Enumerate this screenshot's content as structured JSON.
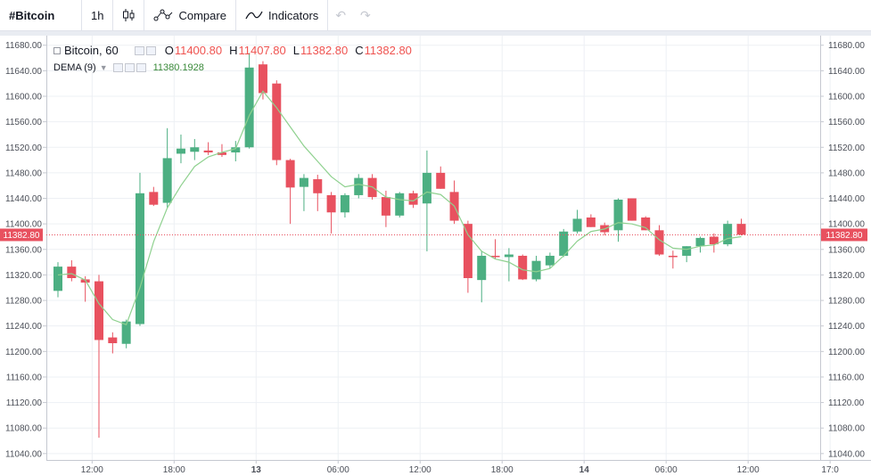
{
  "toolbar": {
    "symbol": "#Bitcoin",
    "interval": "1h",
    "compare_label": "Compare",
    "indicators_label": "Indicators"
  },
  "legend": {
    "title": "Bitcoin, 60",
    "o_label": "O",
    "o_value": "11400.80",
    "h_label": "H",
    "h_value": "11407.80",
    "l_label": "L",
    "l_value": "11382.80",
    "c_label": "C",
    "c_value": "11382.80",
    "indicator_name": "DEMA (9)",
    "indicator_value": "11380.1928"
  },
  "colors": {
    "up": "#4caf82",
    "down": "#e8515f",
    "dema": "#8fd18f",
    "price_line": "#e8515f"
  },
  "chart_data": {
    "type": "candlestick",
    "ylim": [
      11030,
      11695
    ],
    "y_ticks": [
      11040,
      11080,
      11120,
      11160,
      11200,
      11240,
      11280,
      11320,
      11360,
      11400,
      11440,
      11480,
      11520,
      11560,
      11600,
      11640,
      11680
    ],
    "y_tick_labels": [
      "11040.00",
      "11080.00",
      "11120.00",
      "11160.00",
      "11200.00",
      "11240.00",
      "11280.00",
      "11320.00",
      "11360.00",
      "11400.00",
      "11440.00",
      "11480.00",
      "11520.00",
      "11560.00",
      "11600.00",
      "11640.00",
      "11680.00"
    ],
    "x_ticks": [
      {
        "index": 2.5,
        "label": "12:00"
      },
      {
        "index": 8.5,
        "label": "18:00"
      },
      {
        "index": 14.5,
        "label": "13"
      },
      {
        "index": 20.5,
        "label": "06:00"
      },
      {
        "index": 26.5,
        "label": "12:00"
      },
      {
        "index": 32.5,
        "label": "18:00"
      },
      {
        "index": 38.5,
        "label": "14"
      },
      {
        "index": 44.5,
        "label": "06:00"
      },
      {
        "index": 50.5,
        "label": "12:00"
      },
      {
        "index": 56.5,
        "label": "17:0"
      }
    ],
    "last_price": 11382.8,
    "last_price_label": "11382.80",
    "candles": [
      {
        "o": 11295,
        "h": 11340,
        "l": 11285,
        "c": 11333
      },
      {
        "o": 11333,
        "h": 11343,
        "l": 11310,
        "c": 11315
      },
      {
        "o": 11313,
        "h": 11318,
        "l": 11278,
        "c": 11308
      },
      {
        "o": 11310,
        "h": 11320,
        "l": 11065,
        "c": 11218
      },
      {
        "o": 11222,
        "h": 11230,
        "l": 11197,
        "c": 11213
      },
      {
        "o": 11212,
        "h": 11250,
        "l": 11205,
        "c": 11247
      },
      {
        "o": 11243,
        "h": 11480,
        "l": 11240,
        "c": 11448
      },
      {
        "o": 11450,
        "h": 11458,
        "l": 11428,
        "c": 11430
      },
      {
        "o": 11433,
        "h": 11550,
        "l": 11425,
        "c": 11503
      },
      {
        "o": 11510,
        "h": 11540,
        "l": 11495,
        "c": 11518
      },
      {
        "o": 11513,
        "h": 11533,
        "l": 11500,
        "c": 11520
      },
      {
        "o": 11515,
        "h": 11528,
        "l": 11508,
        "c": 11512
      },
      {
        "o": 11512,
        "h": 11525,
        "l": 11505,
        "c": 11508
      },
      {
        "o": 11512,
        "h": 11530,
        "l": 11498,
        "c": 11520
      },
      {
        "o": 11520,
        "h": 11668,
        "l": 11518,
        "c": 11645
      },
      {
        "o": 11650,
        "h": 11655,
        "l": 11595,
        "c": 11605
      },
      {
        "o": 11620,
        "h": 11625,
        "l": 11492,
        "c": 11500
      },
      {
        "o": 11500,
        "h": 11502,
        "l": 11400,
        "c": 11457
      },
      {
        "o": 11458,
        "h": 11478,
        "l": 11420,
        "c": 11472
      },
      {
        "o": 11470,
        "h": 11477,
        "l": 11420,
        "c": 11448
      },
      {
        "o": 11445,
        "h": 11450,
        "l": 11385,
        "c": 11418
      },
      {
        "o": 11418,
        "h": 11448,
        "l": 11410,
        "c": 11445
      },
      {
        "o": 11445,
        "h": 11478,
        "l": 11440,
        "c": 11472
      },
      {
        "o": 11472,
        "h": 11478,
        "l": 11438,
        "c": 11442
      },
      {
        "o": 11442,
        "h": 11452,
        "l": 11395,
        "c": 11413
      },
      {
        "o": 11413,
        "h": 11450,
        "l": 11410,
        "c": 11448
      },
      {
        "o": 11448,
        "h": 11452,
        "l": 11425,
        "c": 11430
      },
      {
        "o": 11432,
        "h": 11515,
        "l": 11357,
        "c": 11480
      },
      {
        "o": 11480,
        "h": 11490,
        "l": 11455,
        "c": 11455
      },
      {
        "o": 11450,
        "h": 11468,
        "l": 11400,
        "c": 11405
      },
      {
        "o": 11400,
        "h": 11405,
        "l": 11292,
        "c": 11315
      },
      {
        "o": 11312,
        "h": 11358,
        "l": 11277,
        "c": 11350
      },
      {
        "o": 11350,
        "h": 11376,
        "l": 11345,
        "c": 11348
      },
      {
        "o": 11348,
        "h": 11362,
        "l": 11310,
        "c": 11352
      },
      {
        "o": 11350,
        "h": 11352,
        "l": 11312,
        "c": 11313
      },
      {
        "o": 11313,
        "h": 11350,
        "l": 11310,
        "c": 11342
      },
      {
        "o": 11335,
        "h": 11355,
        "l": 11330,
        "c": 11350
      },
      {
        "o": 11350,
        "h": 11392,
        "l": 11348,
        "c": 11388
      },
      {
        "o": 11388,
        "h": 11422,
        "l": 11385,
        "c": 11408
      },
      {
        "o": 11410,
        "h": 11415,
        "l": 11395,
        "c": 11395
      },
      {
        "o": 11398,
        "h": 11402,
        "l": 11382,
        "c": 11387
      },
      {
        "o": 11390,
        "h": 11440,
        "l": 11372,
        "c": 11438
      },
      {
        "o": 11440,
        "h": 11440,
        "l": 11405,
        "c": 11405
      },
      {
        "o": 11410,
        "h": 11412,
        "l": 11390,
        "c": 11390
      },
      {
        "o": 11390,
        "h": 11398,
        "l": 11350,
        "c": 11352
      },
      {
        "o": 11350,
        "h": 11358,
        "l": 11330,
        "c": 11348
      },
      {
        "o": 11350,
        "h": 11365,
        "l": 11340,
        "c": 11365
      },
      {
        "o": 11365,
        "h": 11380,
        "l": 11355,
        "c": 11378
      },
      {
        "o": 11380,
        "h": 11385,
        "l": 11355,
        "c": 11368
      },
      {
        "o": 11368,
        "h": 11405,
        "l": 11365,
        "c": 11400
      },
      {
        "o": 11400,
        "h": 11408,
        "l": 11382,
        "c": 11383
      }
    ],
    "dema": [
      11320,
      11322,
      11312,
      11275,
      11250,
      11242,
      11300,
      11372,
      11425,
      11460,
      11490,
      11505,
      11512,
      11518,
      11570,
      11608,
      11582,
      11552,
      11522,
      11498,
      11474,
      11458,
      11462,
      11458,
      11442,
      11438,
      11436,
      11450,
      11446,
      11428,
      11383,
      11357,
      11345,
      11340,
      11328,
      11325,
      11330,
      11350,
      11373,
      11388,
      11392,
      11402,
      11400,
      11394,
      11375,
      11362,
      11360,
      11365,
      11367,
      11377,
      11380
    ]
  }
}
